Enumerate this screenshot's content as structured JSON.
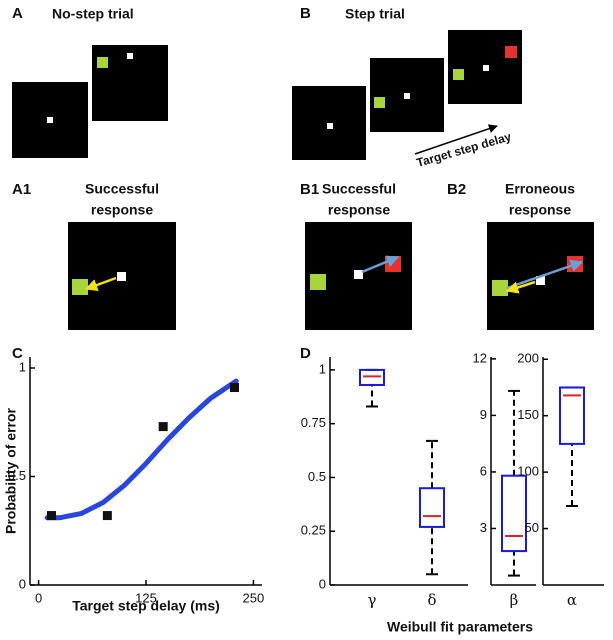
{
  "figure": {
    "panel_a": "A",
    "panel_a_title": "No-step trial",
    "panel_b": "B",
    "panel_b_title": "Step trial",
    "step_arrow_label": "Target step delay",
    "panel_a1": "A1",
    "a1_line1": "Successful",
    "a1_line2": "response",
    "panel_b1": "B1",
    "b1_line1": "Successful",
    "b1_line2": "response",
    "panel_b2": "B2",
    "b2_line1": "Erroneous",
    "b2_line2": "response",
    "panel_c": "C",
    "panel_d": "D",
    "d_xlabel": "Weibull fit parameters"
  },
  "chart_data": [
    {
      "type": "scatter",
      "xlabel": "Target step delay (ms)",
      "ylabel": "Probability of error",
      "xlim": [
        -10,
        260
      ],
      "xticks": [
        0,
        125,
        250
      ],
      "ylim": [
        0,
        1
      ],
      "yticks": [
        0,
        0.5,
        1
      ],
      "series": [
        {
          "style": "line",
          "color": "#2945e0",
          "x": [
            10,
            25,
            50,
            75,
            100,
            125,
            150,
            175,
            200,
            230
          ],
          "values": [
            0.31,
            0.31,
            0.33,
            0.38,
            0.46,
            0.56,
            0.67,
            0.77,
            0.86,
            0.94
          ]
        },
        {
          "style": "markers",
          "color": "#111111",
          "x": [
            15,
            80,
            145,
            228
          ],
          "values": [
            0.32,
            0.32,
            0.73,
            0.91
          ]
        }
      ]
    },
    {
      "type": "box",
      "ylim": [
        0,
        1.06
      ],
      "yticks": [
        0,
        0.25,
        0.5,
        0.75,
        1
      ],
      "color": "#1a1adb",
      "median_color": "#e0202a",
      "series": [
        {
          "name": "γ",
          "whisker_low": 0.83,
          "q1": 0.93,
          "median": 0.97,
          "q3": 1.0,
          "whisker_high": 1.0
        },
        {
          "name": "δ",
          "whisker_low": 0.05,
          "q1": 0.27,
          "median": 0.32,
          "q3": 0.45,
          "whisker_high": 0.67
        }
      ]
    },
    {
      "type": "box",
      "ylim": [
        0,
        12.1
      ],
      "yticks": [
        3,
        6,
        9,
        12
      ],
      "color": "#1a1adb",
      "median_color": "#e0202a",
      "series": [
        {
          "name": "β",
          "whisker_low": 0.5,
          "q1": 1.8,
          "median": 2.6,
          "q3": 5.8,
          "whisker_high": 10.3
        }
      ]
    },
    {
      "type": "box",
      "ylim": [
        0,
        202
      ],
      "yticks": [
        50,
        100,
        150,
        200
      ],
      "color": "#1a1adb",
      "median_color": "#e0202a",
      "series": [
        {
          "name": "α",
          "whisker_low": 70,
          "q1": 125,
          "median": 168,
          "q3": 175,
          "whisker_high": 175
        }
      ]
    }
  ]
}
